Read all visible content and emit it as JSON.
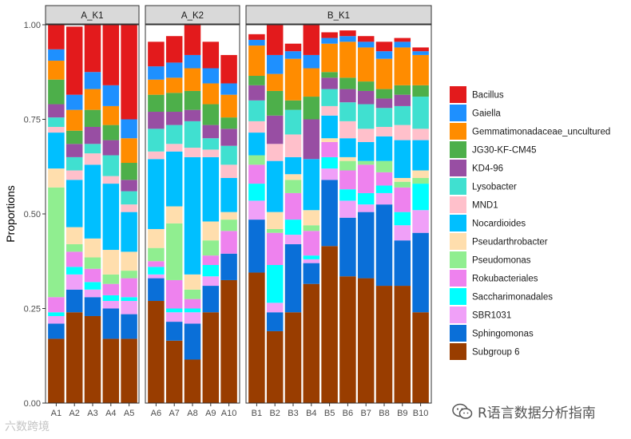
{
  "chart_data": {
    "type": "bar",
    "stacked": true,
    "ylabel": "Proportions",
    "ylim": [
      0,
      1
    ],
    "yticks": [
      0,
      0.25,
      0.5,
      0.75,
      1
    ],
    "ytick_labels": [
      "0.00",
      "0.25",
      "0.50",
      "0.75",
      "1.00"
    ],
    "legend_position": "right",
    "stack_order_bottom_to_top": [
      "Subgroup 6",
      "Sphingomonas",
      "SBR1031",
      "Saccharimonadales",
      "Rokubacteriales",
      "Pseudomonas",
      "Pseudarthrobacter",
      "Nocardioides",
      "MND1",
      "Lysobacter",
      "KD4-96",
      "JG30-KF-CM45",
      "Gemmatimonadaceae_uncultured",
      "Gaiella",
      "Bacillus"
    ],
    "legend": [
      {
        "name": "Bacillus",
        "color": "#E31A1C"
      },
      {
        "name": "Gaiella",
        "color": "#1E90FF"
      },
      {
        "name": "Gemmatimonadaceae_uncultured",
        "color": "#FF8C00"
      },
      {
        "name": "JG30-KF-CM45",
        "color": "#4DAF4A"
      },
      {
        "name": "KD4-96",
        "color": "#984EA3"
      },
      {
        "name": "Lysobacter",
        "color": "#40E0D0"
      },
      {
        "name": "MND1",
        "color": "#FFC0CB"
      },
      {
        "name": "Nocardioides",
        "color": "#00BFFF"
      },
      {
        "name": "Pseudarthrobacter",
        "color": "#FFDEAD"
      },
      {
        "name": "Pseudomonas",
        "color": "#90EE90"
      },
      {
        "name": "Rokubacteriales",
        "color": "#EE82EE"
      },
      {
        "name": "Saccharimonadales",
        "color": "#00FFFF"
      },
      {
        "name": "SBR1031",
        "color": "#F0A0F8"
      },
      {
        "name": "Sphingomonas",
        "color": "#0A6FD8"
      },
      {
        "name": "Subgroup 6",
        "color": "#993D00"
      }
    ],
    "panels": [
      {
        "title": "A_K1",
        "samples": [
          "A1",
          "A2",
          "A3",
          "A4",
          "A5"
        ],
        "series": {
          "Subgroup 6": [
            0.17,
            0.24,
            0.23,
            0.17,
            0.17
          ],
          "Sphingomonas": [
            0.04,
            0.06,
            0.05,
            0.08,
            0.065
          ],
          "SBR1031": [
            0.02,
            0.04,
            0.02,
            0.02,
            0.035
          ],
          "Saccharimonadales": [
            0.01,
            0.02,
            0.02,
            0.015,
            0.01
          ],
          "Rokubacteriales": [
            0.04,
            0.04,
            0.035,
            0.03,
            0.05
          ],
          "Pseudomonas": [
            0.29,
            0.02,
            0.03,
            0.025,
            0.02
          ],
          "Pseudarthrobacter": [
            0.05,
            0.045,
            0.05,
            0.065,
            0.05
          ],
          "Nocardioides": [
            0.095,
            0.125,
            0.195,
            0.175,
            0.105
          ],
          "MND1": [
            0.015,
            0.025,
            0.03,
            0.02,
            0.02
          ],
          "Lysobacter": [
            0.025,
            0.035,
            0.025,
            0.055,
            0.035
          ],
          "KD4-96": [
            0.035,
            0.035,
            0.045,
            0.04,
            0.03
          ],
          "JG30-KF-CM45": [
            0.065,
            0.035,
            0.045,
            0.04,
            0.045
          ],
          "Gemmatimonadaceae_uncultured": [
            0.05,
            0.055,
            0.055,
            0.05,
            0.065
          ],
          "Gaiella": [
            0.03,
            0.04,
            0.045,
            0.055,
            0.05
          ],
          "Bacillus": [
            0.065,
            0.18,
            0.125,
            0.16,
            0.25
          ]
        }
      },
      {
        "title": "A_K2",
        "samples": [
          "A6",
          "A7",
          "A8",
          "A9",
          "A10"
        ],
        "series": {
          "Subgroup 6": [
            0.27,
            0.165,
            0.115,
            0.24,
            0.325
          ],
          "Sphingomonas": [
            0.06,
            0.05,
            0.095,
            0.07,
            0.07
          ],
          "SBR1031": [
            0.01,
            0.025,
            0.03,
            0.025,
            0.0
          ],
          "Saccharimonadales": [
            0.02,
            0.01,
            0.01,
            0.03,
            0.0
          ],
          "Rokubacteriales": [
            0.015,
            0.075,
            0.025,
            0.025,
            0.06
          ],
          "Pseudomonas": [
            0.035,
            0.15,
            0.025,
            0.04,
            0.03
          ],
          "Pseudarthrobacter": [
            0.05,
            0.045,
            0.04,
            0.05,
            0.02
          ],
          "Nocardioides": [
            0.185,
            0.145,
            0.31,
            0.17,
            0.09
          ],
          "MND1": [
            0.02,
            0.02,
            0.025,
            0.02,
            0.035
          ],
          "Lysobacter": [
            0.06,
            0.05,
            0.07,
            0.03,
            0.05
          ],
          "KD4-96": [
            0.045,
            0.035,
            0.03,
            0.035,
            0.045
          ],
          "JG30-KF-CM45": [
            0.045,
            0.05,
            0.05,
            0.055,
            0.03
          ],
          "Gemmatimonadaceae_uncultured": [
            0.04,
            0.04,
            0.06,
            0.055,
            0.06
          ],
          "Gaiella": [
            0.035,
            0.04,
            0.035,
            0.04,
            0.03
          ],
          "Bacillus": [
            0.065,
            0.07,
            0.08,
            0.07,
            0.075
          ]
        }
      },
      {
        "title": "B_K1",
        "samples": [
          "B1",
          "B2",
          "B3",
          "B4",
          "B5",
          "B6",
          "B7",
          "B8",
          "B9",
          "B10"
        ],
        "series": {
          "Subgroup 6": [
            0.345,
            0.19,
            0.24,
            0.315,
            0.415,
            0.335,
            0.33,
            0.31,
            0.31,
            0.24
          ],
          "Sphingomonas": [
            0.14,
            0.05,
            0.18,
            0.055,
            0.175,
            0.155,
            0.175,
            0.215,
            0.12,
            0.21
          ],
          "SBR1031": [
            0.05,
            0.025,
            0.025,
            0.01,
            0.03,
            0.045,
            0.02,
            0.03,
            0.04,
            0.06
          ],
          "Saccharimonadales": [
            0.045,
            0.1,
            0.04,
            0.01,
            0.03,
            0.03,
            0.03,
            0.02,
            0.035,
            0.07
          ],
          "Rokubacteriales": [
            0.05,
            0.085,
            0.07,
            0.065,
            0.04,
            0.05,
            0.075,
            0.035,
            0.065,
            0.0
          ],
          "Pseudomonas": [
            0.025,
            0.01,
            0.035,
            0.015,
            0.0,
            0.025,
            0.01,
            0.03,
            0.015,
            0.015
          ],
          "Pseudarthrobacter": [
            0.0,
            0.045,
            0.015,
            0.04,
            0.01,
            0.01,
            0.0,
            0.0,
            0.01,
            0.02
          ],
          "Nocardioides": [
            0.06,
            0.135,
            0.045,
            0.135,
            0.06,
            0.05,
            0.05,
            0.065,
            0.1,
            0.08
          ],
          "MND1": [
            0.03,
            0.045,
            0.06,
            0.0,
            0.025,
            0.045,
            0.035,
            0.025,
            0.04,
            0.03
          ],
          "Lysobacter": [
            0.055,
            0.0,
            0.065,
            0.0,
            0.045,
            0.05,
            0.065,
            0.05,
            0.05,
            0.085
          ],
          "KD4-96": [
            0.04,
            0.075,
            0.0,
            0.105,
            0.03,
            0.035,
            0.035,
            0.025,
            0.03,
            0.0
          ],
          "JG30-KF-CM45": [
            0.025,
            0.065,
            0.025,
            0.06,
            0.015,
            0.03,
            0.025,
            0.025,
            0.025,
            0.03
          ],
          "Gemmatimonadaceae_uncultured": [
            0.08,
            0.045,
            0.11,
            0.075,
            0.075,
            0.095,
            0.09,
            0.08,
            0.1,
            0.08
          ],
          "Gaiella": [
            0.015,
            0.05,
            0.02,
            0.035,
            0.015,
            0.015,
            0.015,
            0.02,
            0.015,
            0.01
          ],
          "Bacillus": [
            0.015,
            0.08,
            0.02,
            0.08,
            0.015,
            0.015,
            0.015,
            0.025,
            0.01,
            0.01
          ]
        }
      }
    ]
  },
  "watermarks": {
    "left": "六数跨境",
    "right": "R语言数据分析指南"
  }
}
